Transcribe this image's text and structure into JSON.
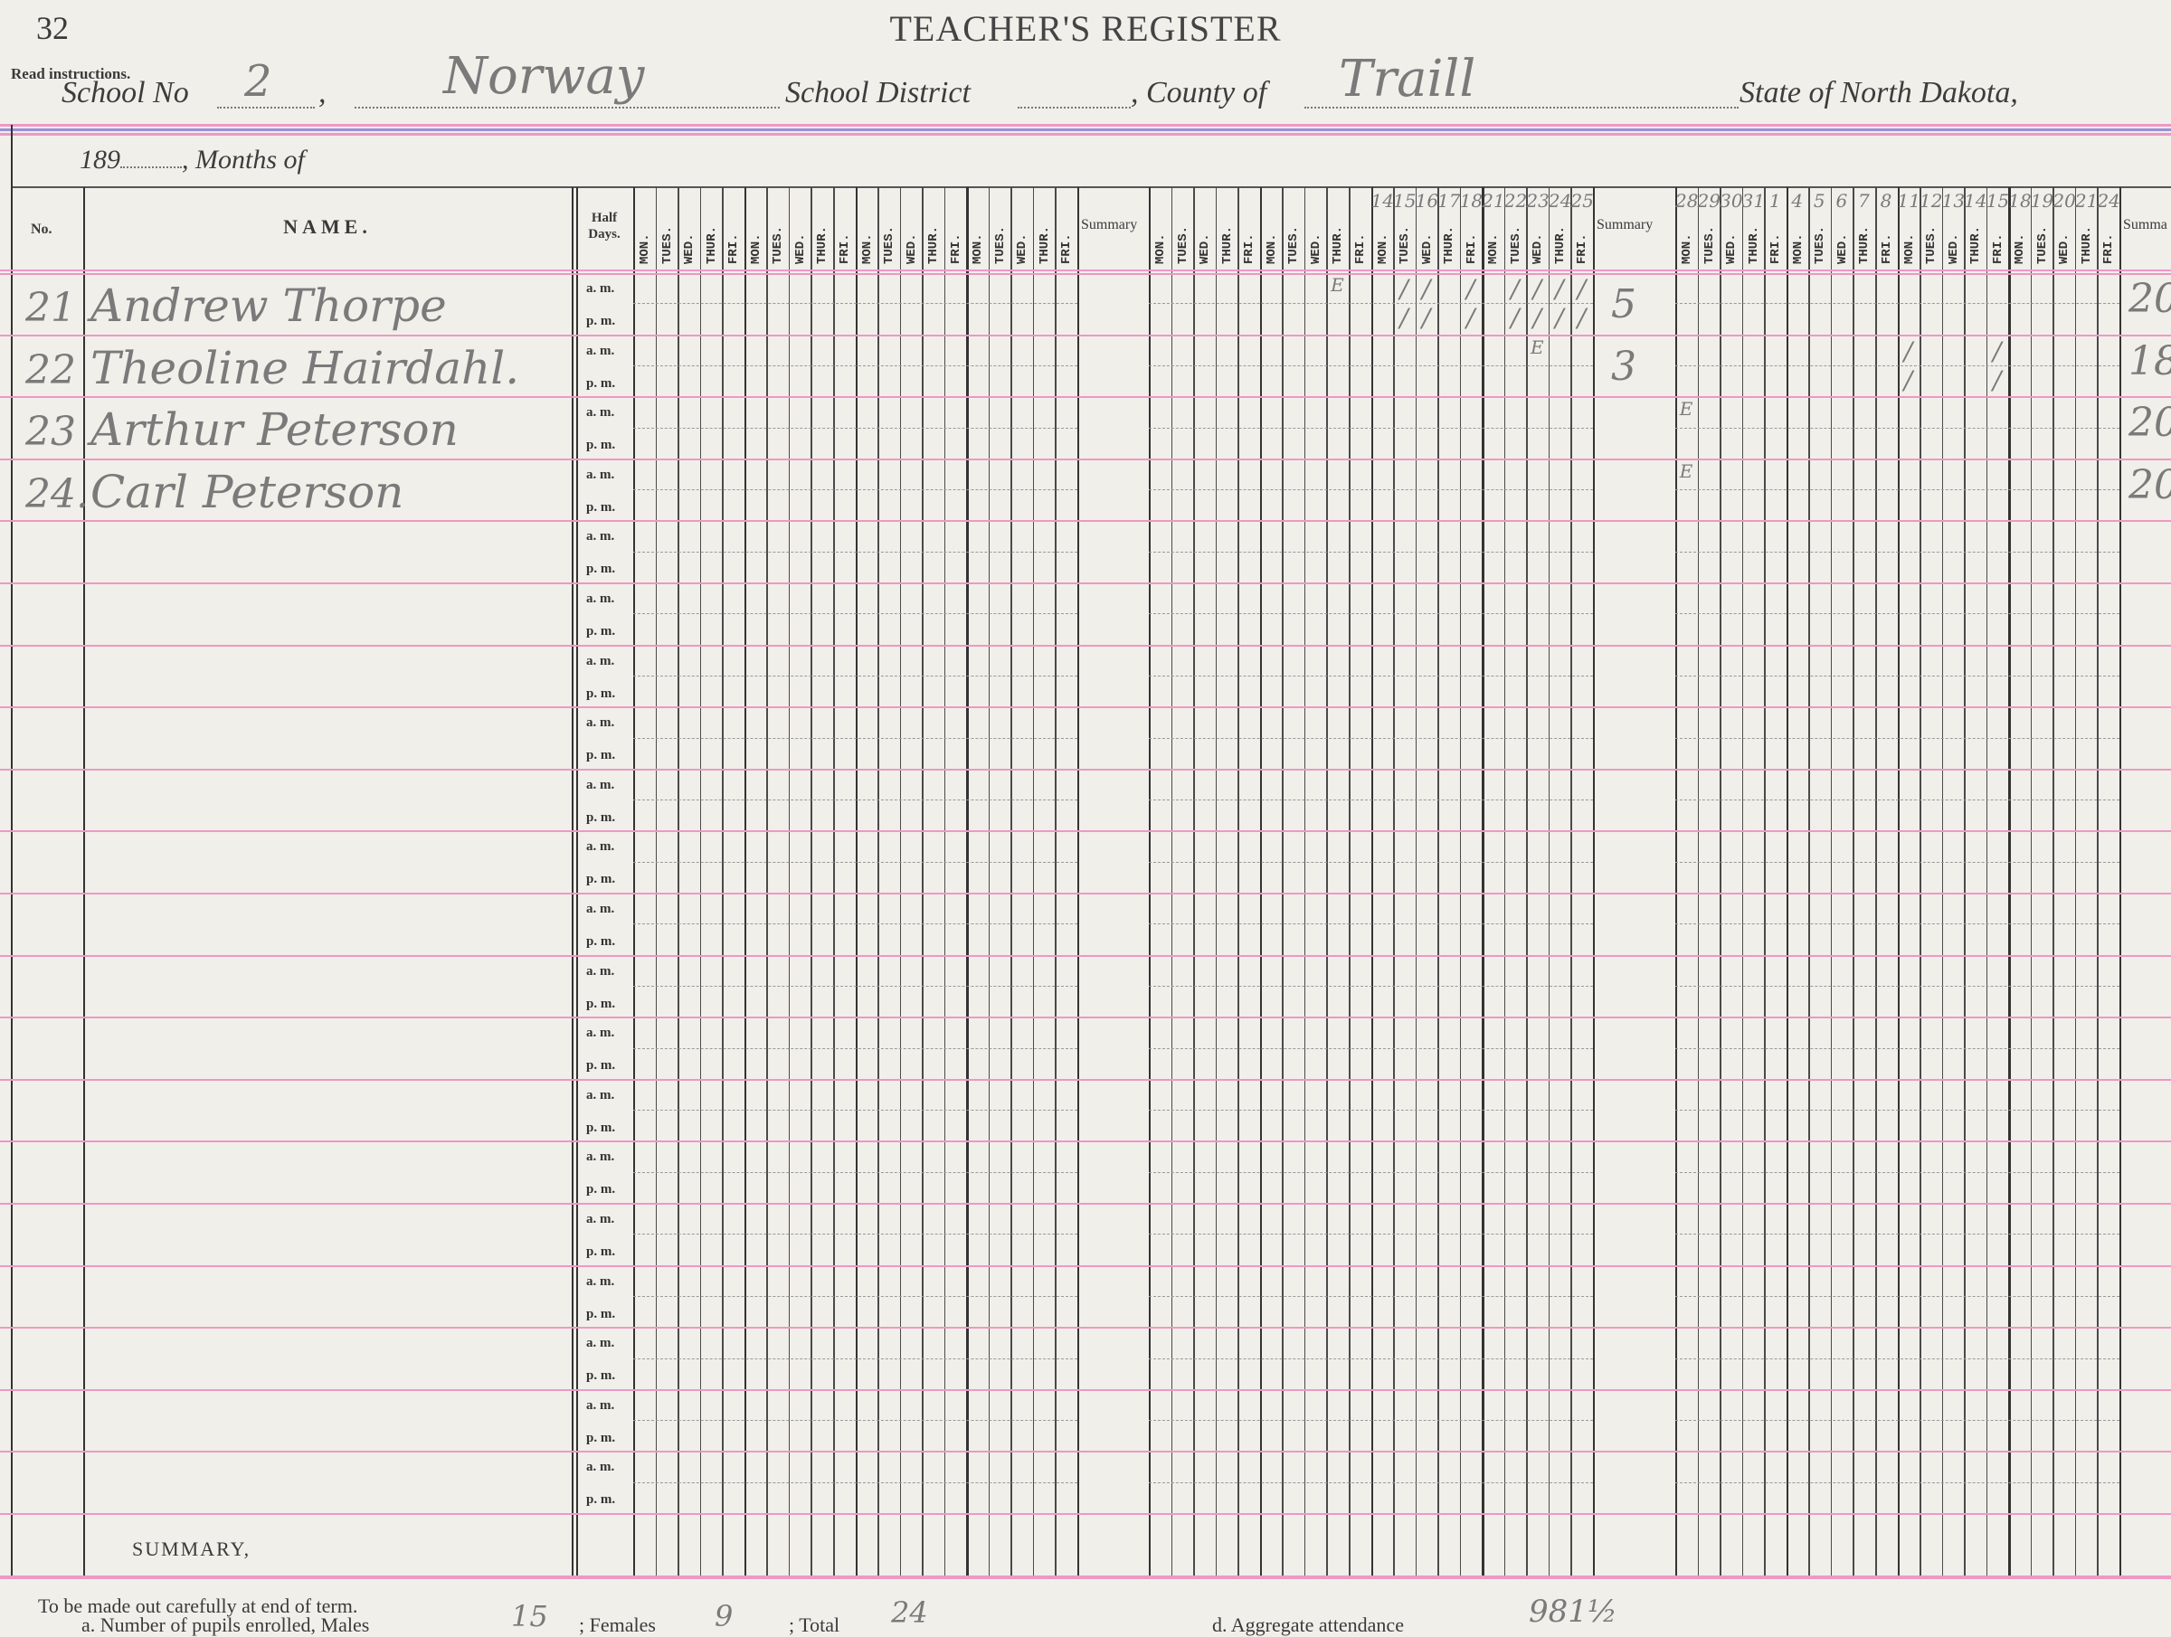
{
  "page_number": "32",
  "title": "TEACHER'S REGISTER",
  "read_instructions": "Read instructions.",
  "school_line": {
    "school_no_label": "School No",
    "school_no": "2",
    "district_name": "Norway",
    "school_district_label": "School District",
    "county_label": ", County of",
    "county": "Traill",
    "state_label": "State of North Dakota,"
  },
  "months_line": {
    "year_label": "189",
    "months_label": ", Months of"
  },
  "header": {
    "no": "No.",
    "name": "NAME.",
    "half_days": "Half Days.",
    "summary": "Summary",
    "summary_cut": "Summa",
    "weekdays": [
      "MON.",
      "TUES.",
      "WED.",
      "THUR.",
      "FRI."
    ],
    "ampm": [
      "a. m.",
      "p. m."
    ]
  },
  "day_numbers": {
    "block2": [
      "",
      "",
      "",
      "",
      "",
      "",
      "",
      "",
      "",
      "",
      "14",
      "15",
      "16",
      "17",
      "18",
      "21",
      "22",
      "23",
      "24",
      "25"
    ],
    "block3": [
      "28",
      "29",
      "30",
      "31",
      "1",
      "4",
      "5",
      "6",
      "7",
      "8",
      "11",
      "12",
      "13",
      "14",
      "15",
      "18",
      "19",
      "20",
      "21",
      "24"
    ]
  },
  "students": [
    {
      "no": "21",
      "name": "Andrew Thorpe",
      "marks": [
        {
          "block": 2,
          "day_index": 8,
          "half": "am",
          "mark": "E"
        },
        {
          "block": 2,
          "day_index": 11,
          "half": "am",
          "mark": "/"
        },
        {
          "block": 2,
          "day_index": 12,
          "half": "am",
          "mark": "/"
        },
        {
          "block": 2,
          "day_index": 14,
          "half": "am",
          "mark": "/"
        },
        {
          "block": 2,
          "day_index": 16,
          "half": "am",
          "mark": "/"
        },
        {
          "block": 2,
          "day_index": 17,
          "half": "am",
          "mark": "/"
        },
        {
          "block": 2,
          "day_index": 18,
          "half": "am",
          "mark": "/"
        },
        {
          "block": 2,
          "day_index": 19,
          "half": "am",
          "mark": "/"
        },
        {
          "block": 2,
          "day_index": 11,
          "half": "pm",
          "mark": "/"
        },
        {
          "block": 2,
          "day_index": 12,
          "half": "pm",
          "mark": "/"
        },
        {
          "block": 2,
          "day_index": 14,
          "half": "pm",
          "mark": "/"
        },
        {
          "block": 2,
          "day_index": 16,
          "half": "pm",
          "mark": "/"
        },
        {
          "block": 2,
          "day_index": 17,
          "half": "pm",
          "mark": "/"
        },
        {
          "block": 2,
          "day_index": 18,
          "half": "pm",
          "mark": "/"
        },
        {
          "block": 2,
          "day_index": 19,
          "half": "pm",
          "mark": "/"
        }
      ],
      "summary_block2": "5",
      "summary_block3": "20"
    },
    {
      "no": "22",
      "name": "Theoline Hairdahl.",
      "marks": [
        {
          "block": 2,
          "day_index": 17,
          "half": "am",
          "mark": "E"
        },
        {
          "block": 3,
          "day_index": 10,
          "half": "am",
          "mark": "/"
        },
        {
          "block": 3,
          "day_index": 14,
          "half": "am",
          "mark": "/"
        },
        {
          "block": 3,
          "day_index": 10,
          "half": "pm",
          "mark": "/"
        },
        {
          "block": 3,
          "day_index": 14,
          "half": "pm",
          "mark": "/"
        }
      ],
      "summary_block2": "3",
      "summary_block3": "18"
    },
    {
      "no": "23",
      "name": "Arthur Peterson",
      "marks": [
        {
          "block": 3,
          "day_index": 0,
          "half": "am",
          "mark": "E"
        }
      ],
      "summary_block2": "",
      "summary_block3": "20"
    },
    {
      "no": "24.",
      "name": "Carl Peterson",
      "marks": [
        {
          "block": 3,
          "day_index": 0,
          "half": "am",
          "mark": "E"
        }
      ],
      "summary_block2": "",
      "summary_block3": "20"
    }
  ],
  "summary_row_label": "SUMMARY,",
  "footer": {
    "instruction": "To be made out carefully at end of term.",
    "enrolled_label": "a.   Number of pupils enrolled, Males",
    "males": "15",
    "females_label": "; Females",
    "females": "9",
    "total_label": "; Total",
    "total": "24",
    "aggregate_label": "d.   Aggregate attendance",
    "aggregate": "981½"
  },
  "colors": {
    "pink_rule": "#ee98c4",
    "blue_rule": "#9a8fd6",
    "paper": "#f1efea",
    "ink": "#7a7a7a"
  }
}
